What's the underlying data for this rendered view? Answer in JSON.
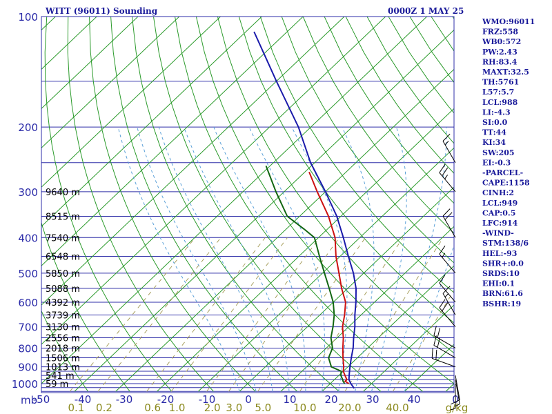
{
  "header": {
    "title": "WITT (96011) Sounding",
    "time": "0000Z  1 MAY 25"
  },
  "colors": {
    "isobar": "#2e2ea8",
    "temperature": "#cc1111",
    "dewpoint": "#116611",
    "parcel": "#1a1aaa",
    "isotherm": "#2a9a2a",
    "dry_adiabat": "#2a9a2a",
    "moist_adiabat": "#5aa0d8",
    "mixing_ratio": "#a8a060",
    "wind": "#000000"
  },
  "axes": {
    "pressure_labels": [
      "100",
      "200",
      "300",
      "400",
      "500",
      "600",
      "700",
      "800",
      "900",
      "1000"
    ],
    "pressure_unit": "mb",
    "temperature_labels": [
      "-50",
      "-40",
      "-30",
      "-20",
      "-10",
      "0",
      "10",
      "20",
      "30",
      "40",
      "0"
    ],
    "mixing_ratio_labels": [
      "0.1",
      "0.2",
      "0.6",
      "1.0",
      "2.0",
      "3.0",
      "5.0",
      "10.0",
      "20.0",
      "40.0"
    ],
    "mixing_ratio_unit": "g/kg"
  },
  "heights": [
    "9640 m",
    "8515 m",
    "7540 m",
    "6548 m",
    "5850 m",
    "5088 m",
    "4392 m",
    "3739 m",
    "3130 m",
    "2556 m",
    "2018 m",
    "1506 m",
    "1013 m",
    "541 m",
    "59 m"
  ],
  "stats": [
    "WMO:96011",
    "FRZ:558",
    "WB0:572",
    "PW:2.43",
    "RH:83.4",
    "MAXT:32.5",
    "TH:5761",
    "L57:5.7",
    "LCL:988",
    "LI:-4.3",
    "SI:0.0",
    "TT:44",
    "KI:34",
    "SW:205",
    "EI:-0.3",
    "-PARCEL-",
    "CAPE:1158",
    "CINH:2",
    "LCL:949",
    "CAP:0.5",
    "LFC:914",
    "-WIND-",
    "STM:138/6",
    "HEL:-93",
    "SHR+:0.0",
    "SRDS:10",
    "EHI:0.1",
    "BRN:61.6",
    "BSHR:19"
  ],
  "chart_data": {
    "type": "line",
    "title": "WITT (96011) Sounding",
    "xlabel": "",
    "ylabel": "mb",
    "p_range": [
      100,
      1050
    ],
    "t_range_bottom": [
      -50,
      50
    ],
    "isobars": [
      100,
      150,
      200,
      250,
      300,
      350,
      400,
      450,
      500,
      550,
      600,
      650,
      700,
      750,
      800,
      850,
      900,
      925,
      950,
      975,
      1000,
      1025,
      1050
    ],
    "height_levels": [
      300,
      350,
      400,
      450,
      500,
      550,
      600,
      650,
      700,
      750,
      800,
      850,
      900,
      950,
      1000
    ],
    "mixing_ratios": [
      0.1,
      0.2,
      0.6,
      1,
      2,
      3,
      5,
      10,
      20,
      40
    ],
    "series": [
      {
        "key": "temperature",
        "p": [
          1000,
          985,
          975,
          950,
          925,
          900,
          850,
          800,
          750,
          700,
          650,
          600,
          550,
          500,
          450,
          400,
          350,
          300,
          265
        ],
        "t": [
          24.5,
          23,
          23,
          21.5,
          20,
          19,
          16.5,
          14,
          11.5,
          8.5,
          6,
          3,
          -1.5,
          -6,
          -11,
          -16,
          -23,
          -32,
          -39
        ]
      },
      {
        "key": "dewpoint",
        "p": [
          1000,
          985,
          975,
          950,
          925,
          900,
          850,
          800,
          750,
          700,
          650,
          600,
          550,
          500,
          450,
          420,
          400,
          380,
          350,
          300,
          255
        ],
        "t": [
          23.5,
          22.5,
          22,
          20.5,
          19.5,
          16,
          13,
          11.5,
          8.5,
          6.2,
          3.5,
          0,
          -4.5,
          -9.5,
          -15,
          -18.5,
          -21,
          -25.5,
          -33,
          -42,
          -51
        ]
      },
      {
        "key": "parcel",
        "p": [
          1030,
          1000,
          975,
          950,
          900,
          850,
          800,
          750,
          700,
          650,
          600,
          550,
          500,
          450,
          400,
          350,
          300,
          250,
          200,
          150,
          110
        ],
        "t": [
          27,
          25,
          23.5,
          22.5,
          20.5,
          18.5,
          16.5,
          14,
          11.5,
          8.5,
          5.5,
          2,
          -2.5,
          -8,
          -14,
          -21,
          -30,
          -41,
          -53,
          -70,
          -88
        ]
      }
    ],
    "winds": [
      {
        "p": 1000,
        "dir": 180,
        "spd": 5
      },
      {
        "p": 975,
        "dir": 170,
        "spd": 5
      },
      {
        "p": 950,
        "dir": 170,
        "spd": 10
      },
      {
        "p": 900,
        "dir": 290,
        "spd": 20
      },
      {
        "p": 850,
        "dir": 300,
        "spd": 20
      },
      {
        "p": 800,
        "dir": 300,
        "spd": 20
      },
      {
        "p": 700,
        "dir": 320,
        "spd": 20
      },
      {
        "p": 650,
        "dir": 330,
        "spd": 15
      },
      {
        "p": 600,
        "dir": 320,
        "spd": 10
      },
      {
        "p": 500,
        "dir": 320,
        "spd": 15
      },
      {
        "p": 400,
        "dir": 330,
        "spd": 20
      },
      {
        "p": 300,
        "dir": 320,
        "spd": 25
      },
      {
        "p": 250,
        "dir": 330,
        "spd": 15
      }
    ]
  }
}
